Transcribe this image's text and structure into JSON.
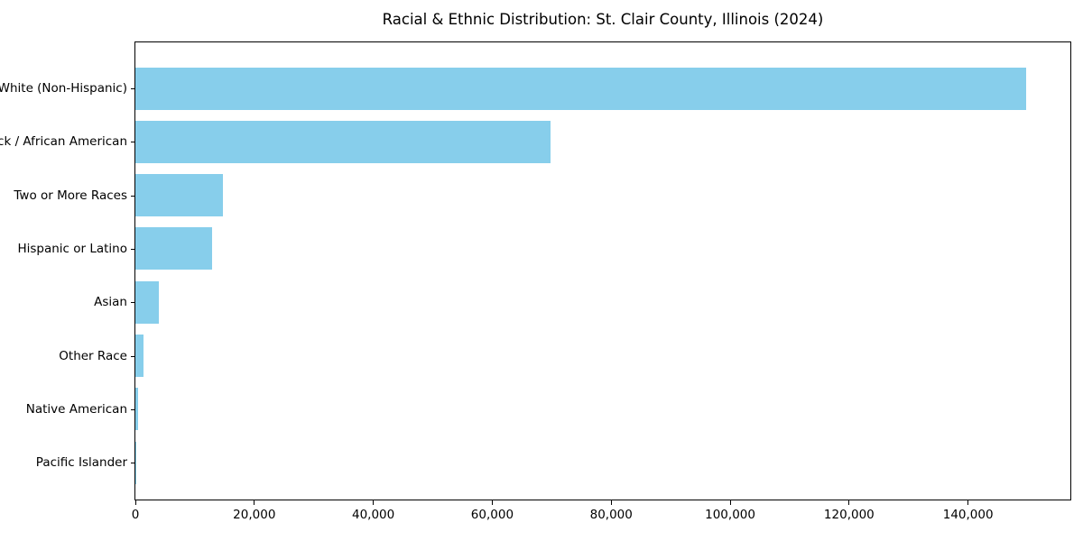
{
  "chart_data": {
    "type": "bar",
    "orientation": "horizontal",
    "title": "Racial & Ethnic Distribution: St. Clair County, Illinois (2024)",
    "categories": [
      "White (Non-Hispanic)",
      "Black / African American",
      "Two or More Races",
      "Hispanic or Latino",
      "Asian",
      "Other Race",
      "Native American",
      "Pacific Islander"
    ],
    "values": [
      150000,
      70000,
      14800,
      12900,
      3900,
      1400,
      400,
      80
    ],
    "xlabel": "",
    "ylabel": "",
    "xlim": [
      0,
      157500
    ],
    "xticks": [
      0,
      20000,
      40000,
      60000,
      80000,
      100000,
      120000,
      140000
    ],
    "xtick_labels": [
      "0",
      "20,000",
      "40,000",
      "60,000",
      "80,000",
      "100,000",
      "120,000",
      "140,000"
    ],
    "bar_color": "#87CEEB",
    "axis_color": "#000000",
    "background_color": "#ffffff",
    "grid": false,
    "legend": null,
    "categories_order": "top-to-bottom"
  }
}
